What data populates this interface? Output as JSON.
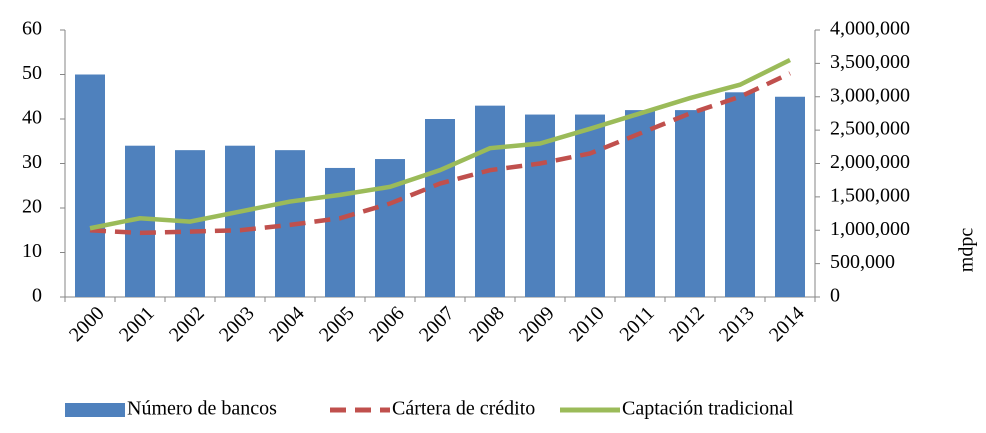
{
  "chart_data": {
    "type": "bar-line",
    "categories": [
      "2000",
      "2001",
      "2002",
      "2003",
      "2004",
      "2005",
      "2006",
      "2007",
      "2008",
      "2009",
      "2010",
      "2011",
      "2012",
      "2013",
      "2014"
    ],
    "series": [
      {
        "name": "Número de bancos",
        "type": "bar",
        "color": "#4f81bd",
        "values": [
          50,
          34,
          33,
          34,
          33,
          29,
          31,
          40,
          43,
          41,
          41,
          42,
          42,
          46,
          45
        ]
      },
      {
        "name": "Cártera de crédito",
        "type": "line",
        "dashed": true,
        "axis": "y2",
        "color": "#c0504d",
        "values": [
          1000000,
          960000,
          980000,
          1000000,
          1080000,
          1180000,
          1400000,
          1700000,
          1900000,
          2000000,
          2150000,
          2450000,
          2750000,
          3000000,
          3350000
        ]
      },
      {
        "name": "Captación tradicional",
        "type": "line",
        "axis": "y2",
        "color": "#9bbb59",
        "values": [
          1030000,
          1180000,
          1130000,
          1280000,
          1430000,
          1530000,
          1650000,
          1900000,
          2230000,
          2300000,
          2520000,
          2750000,
          2980000,
          3180000,
          3550000
        ]
      }
    ],
    "ylim": [
      0,
      60
    ],
    "yticks": [
      0,
      10,
      20,
      30,
      40,
      50,
      60
    ],
    "y2lim": [
      0,
      4000000
    ],
    "y2ticks": [
      0,
      {
        "value": 500000,
        "label": "500,000"
      },
      {
        "value": 1000000,
        "label": "1,000,000"
      },
      {
        "value": 1500000,
        "label": "1,500,000"
      },
      {
        "value": 2000000,
        "label": "2,000,000"
      },
      {
        "value": 2500000,
        "label": "2,500,000"
      },
      {
        "value": 3000000,
        "label": "3,000,000"
      },
      {
        "value": 3500000,
        "label": "3,500,000"
      },
      {
        "value": 4000000,
        "label": "4,000,000"
      }
    ],
    "y2label": "mdpc",
    "legend": "bottom",
    "grid": false
  }
}
